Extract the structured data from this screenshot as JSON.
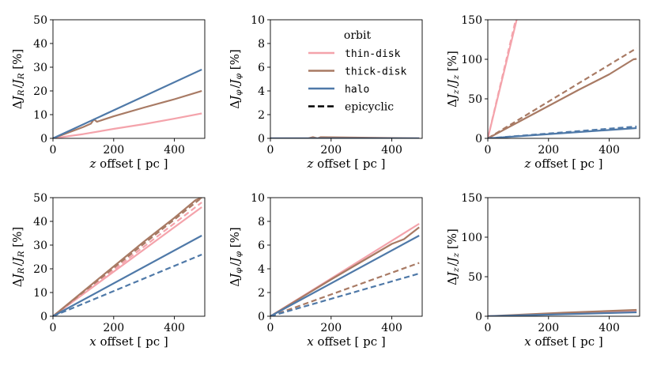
{
  "colors": {
    "thin_disk": "#f4a3ab",
    "thick_disk": "#a87a64",
    "halo": "#4f79a8"
  },
  "legend": {
    "title": "orbit",
    "entries": [
      {
        "label": "thin-disk",
        "color_key": "thin_disk",
        "style": "solid"
      },
      {
        "label": "thick-disk",
        "color_key": "thick_disk",
        "style": "solid"
      },
      {
        "label": "halo",
        "color_key": "halo",
        "style": "solid"
      },
      {
        "label": "epicyclic",
        "color_key": "black",
        "style": "dashed"
      }
    ]
  },
  "chart_data": [
    {
      "type": "line",
      "panel": "row1-col1",
      "xlabel": "z offset [ pc ]",
      "ylabel": "ΔJ_R / J_R [%]",
      "xlim": [
        0,
        500
      ],
      "ylim": [
        0,
        50
      ],
      "xticks": [
        0,
        200,
        400
      ],
      "yticks": [
        0,
        10,
        20,
        30,
        40,
        50
      ],
      "series": [
        {
          "name": "thin-disk",
          "style": "solid",
          "x": [
            0,
            100,
            200,
            300,
            400,
            490
          ],
          "y": [
            0,
            1.8,
            4.0,
            6.0,
            8.3,
            10.5
          ]
        },
        {
          "name": "thick-disk",
          "style": "solid",
          "x": [
            0,
            100,
            125,
            135,
            145,
            200,
            300,
            400,
            490
          ],
          "y": [
            0,
            4.8,
            6.2,
            8.0,
            7.0,
            9.3,
            13.0,
            16.5,
            20.0
          ]
        },
        {
          "name": "halo",
          "style": "solid",
          "x": [
            0,
            490
          ],
          "y": [
            0,
            29.0
          ]
        }
      ]
    },
    {
      "type": "line",
      "panel": "row1-col2",
      "xlabel": "z offset [ pc ]",
      "ylabel": "ΔJ_φ / J_φ [%]",
      "xlim": [
        0,
        500
      ],
      "ylim": [
        0,
        10
      ],
      "xticks": [
        0,
        200,
        400
      ],
      "yticks": [
        0,
        2,
        4,
        6,
        8,
        10
      ],
      "series": [
        {
          "name": "thin-disk",
          "style": "solid",
          "x": [
            0,
            490
          ],
          "y": [
            0,
            0
          ]
        },
        {
          "name": "thick-disk",
          "style": "solid",
          "x": [
            0,
            125,
            140,
            155,
            165,
            490
          ],
          "y": [
            0,
            0,
            0.1,
            0,
            0.1,
            0
          ]
        },
        {
          "name": "halo",
          "style": "solid",
          "x": [
            0,
            490
          ],
          "y": [
            0,
            0
          ]
        }
      ]
    },
    {
      "type": "line",
      "panel": "row1-col3",
      "xlabel": "z offset [ pc ]",
      "ylabel": "ΔJ_z / J_z [%]",
      "xlim": [
        0,
        500
      ],
      "ylim": [
        0,
        150
      ],
      "xticks": [
        0,
        200,
        400
      ],
      "yticks": [
        0,
        50,
        100,
        150
      ],
      "series": [
        {
          "name": "thin-disk",
          "style": "solid",
          "x": [
            0,
            95
          ],
          "y": [
            0,
            150
          ]
        },
        {
          "name": "thin-disk epicyclic",
          "style": "dashed",
          "x": [
            0,
            92
          ],
          "y": [
            0,
            150
          ]
        },
        {
          "name": "thick-disk",
          "style": "solid",
          "x": [
            0,
            100,
            200,
            300,
            400,
            480,
            490
          ],
          "y": [
            0,
            20.5,
            41,
            61.5,
            81,
            100,
            100.5
          ]
        },
        {
          "name": "thick-disk epicyclic",
          "style": "dashed",
          "x": [
            0,
            490
          ],
          "y": [
            0,
            114
          ]
        },
        {
          "name": "halo",
          "style": "solid",
          "x": [
            0,
            490
          ],
          "y": [
            0,
            13
          ]
        },
        {
          "name": "halo epicyclic",
          "style": "dashed",
          "x": [
            0,
            490
          ],
          "y": [
            0,
            15
          ]
        }
      ]
    },
    {
      "type": "line",
      "panel": "row2-col1",
      "xlabel": "x offset [ pc ]",
      "ylabel": "ΔJ_R / J_R [%]",
      "xlim": [
        0,
        500
      ],
      "ylim": [
        0,
        50
      ],
      "xticks": [
        0,
        200,
        400
      ],
      "yticks": [
        0,
        10,
        20,
        30,
        40,
        50
      ],
      "series": [
        {
          "name": "thin-disk",
          "style": "solid",
          "x": [
            0,
            490
          ],
          "y": [
            0,
            46
          ]
        },
        {
          "name": "thin-disk epicyclic",
          "style": "dashed",
          "x": [
            0,
            490
          ],
          "y": [
            0,
            48
          ]
        },
        {
          "name": "thick-disk",
          "style": "solid",
          "x": [
            0,
            100,
            200,
            300,
            400,
            470,
            490
          ],
          "y": [
            0,
            10.5,
            21,
            31.5,
            41.5,
            49,
            50
          ]
        },
        {
          "name": "thick-disk epicyclic",
          "style": "dashed",
          "x": [
            0,
            490
          ],
          "y": [
            0,
            50
          ]
        },
        {
          "name": "halo",
          "style": "solid",
          "x": [
            0,
            490
          ],
          "y": [
            0,
            34
          ]
        },
        {
          "name": "halo epicyclic",
          "style": "dashed",
          "x": [
            0,
            490
          ],
          "y": [
            0,
            26
          ]
        }
      ]
    },
    {
      "type": "line",
      "panel": "row2-col2",
      "xlabel": "x offset [ pc ]",
      "ylabel": "ΔJ_φ / J_φ [%]",
      "xlim": [
        0,
        500
      ],
      "ylim": [
        0,
        10
      ],
      "xticks": [
        0,
        200,
        400
      ],
      "yticks": [
        0,
        2,
        4,
        6,
        8,
        10
      ],
      "series": [
        {
          "name": "thin-disk",
          "style": "solid",
          "x": [
            0,
            490
          ],
          "y": [
            0,
            7.8
          ]
        },
        {
          "name": "thick-disk",
          "style": "solid",
          "x": [
            0,
            200,
            400,
            440,
            460,
            490
          ],
          "y": [
            0,
            3.1,
            6.1,
            6.5,
            6.9,
            7.5
          ]
        },
        {
          "name": "thick-disk epicyclic",
          "style": "dashed",
          "x": [
            0,
            490
          ],
          "y": [
            0,
            4.5
          ]
        },
        {
          "name": "halo",
          "style": "solid",
          "x": [
            0,
            490
          ],
          "y": [
            0,
            6.8
          ]
        },
        {
          "name": "halo epicyclic",
          "style": "dashed",
          "x": [
            0,
            490
          ],
          "y": [
            0,
            3.6
          ]
        }
      ]
    },
    {
      "type": "line",
      "panel": "row2-col3",
      "xlabel": "x offset [ pc ]",
      "ylabel": "ΔJ_z / J_z [%]",
      "xlim": [
        0,
        500
      ],
      "ylim": [
        0,
        150
      ],
      "xticks": [
        0,
        200,
        400
      ],
      "yticks": [
        0,
        50,
        100,
        150
      ],
      "series": [
        {
          "name": "thin-disk",
          "style": "solid",
          "x": [
            0,
            490
          ],
          "y": [
            0,
            7
          ]
        },
        {
          "name": "thick-disk",
          "style": "solid",
          "x": [
            0,
            250,
            490
          ],
          "y": [
            0,
            4.5,
            8
          ]
        },
        {
          "name": "halo",
          "style": "solid",
          "x": [
            0,
            490
          ],
          "y": [
            0,
            5
          ]
        }
      ]
    }
  ]
}
